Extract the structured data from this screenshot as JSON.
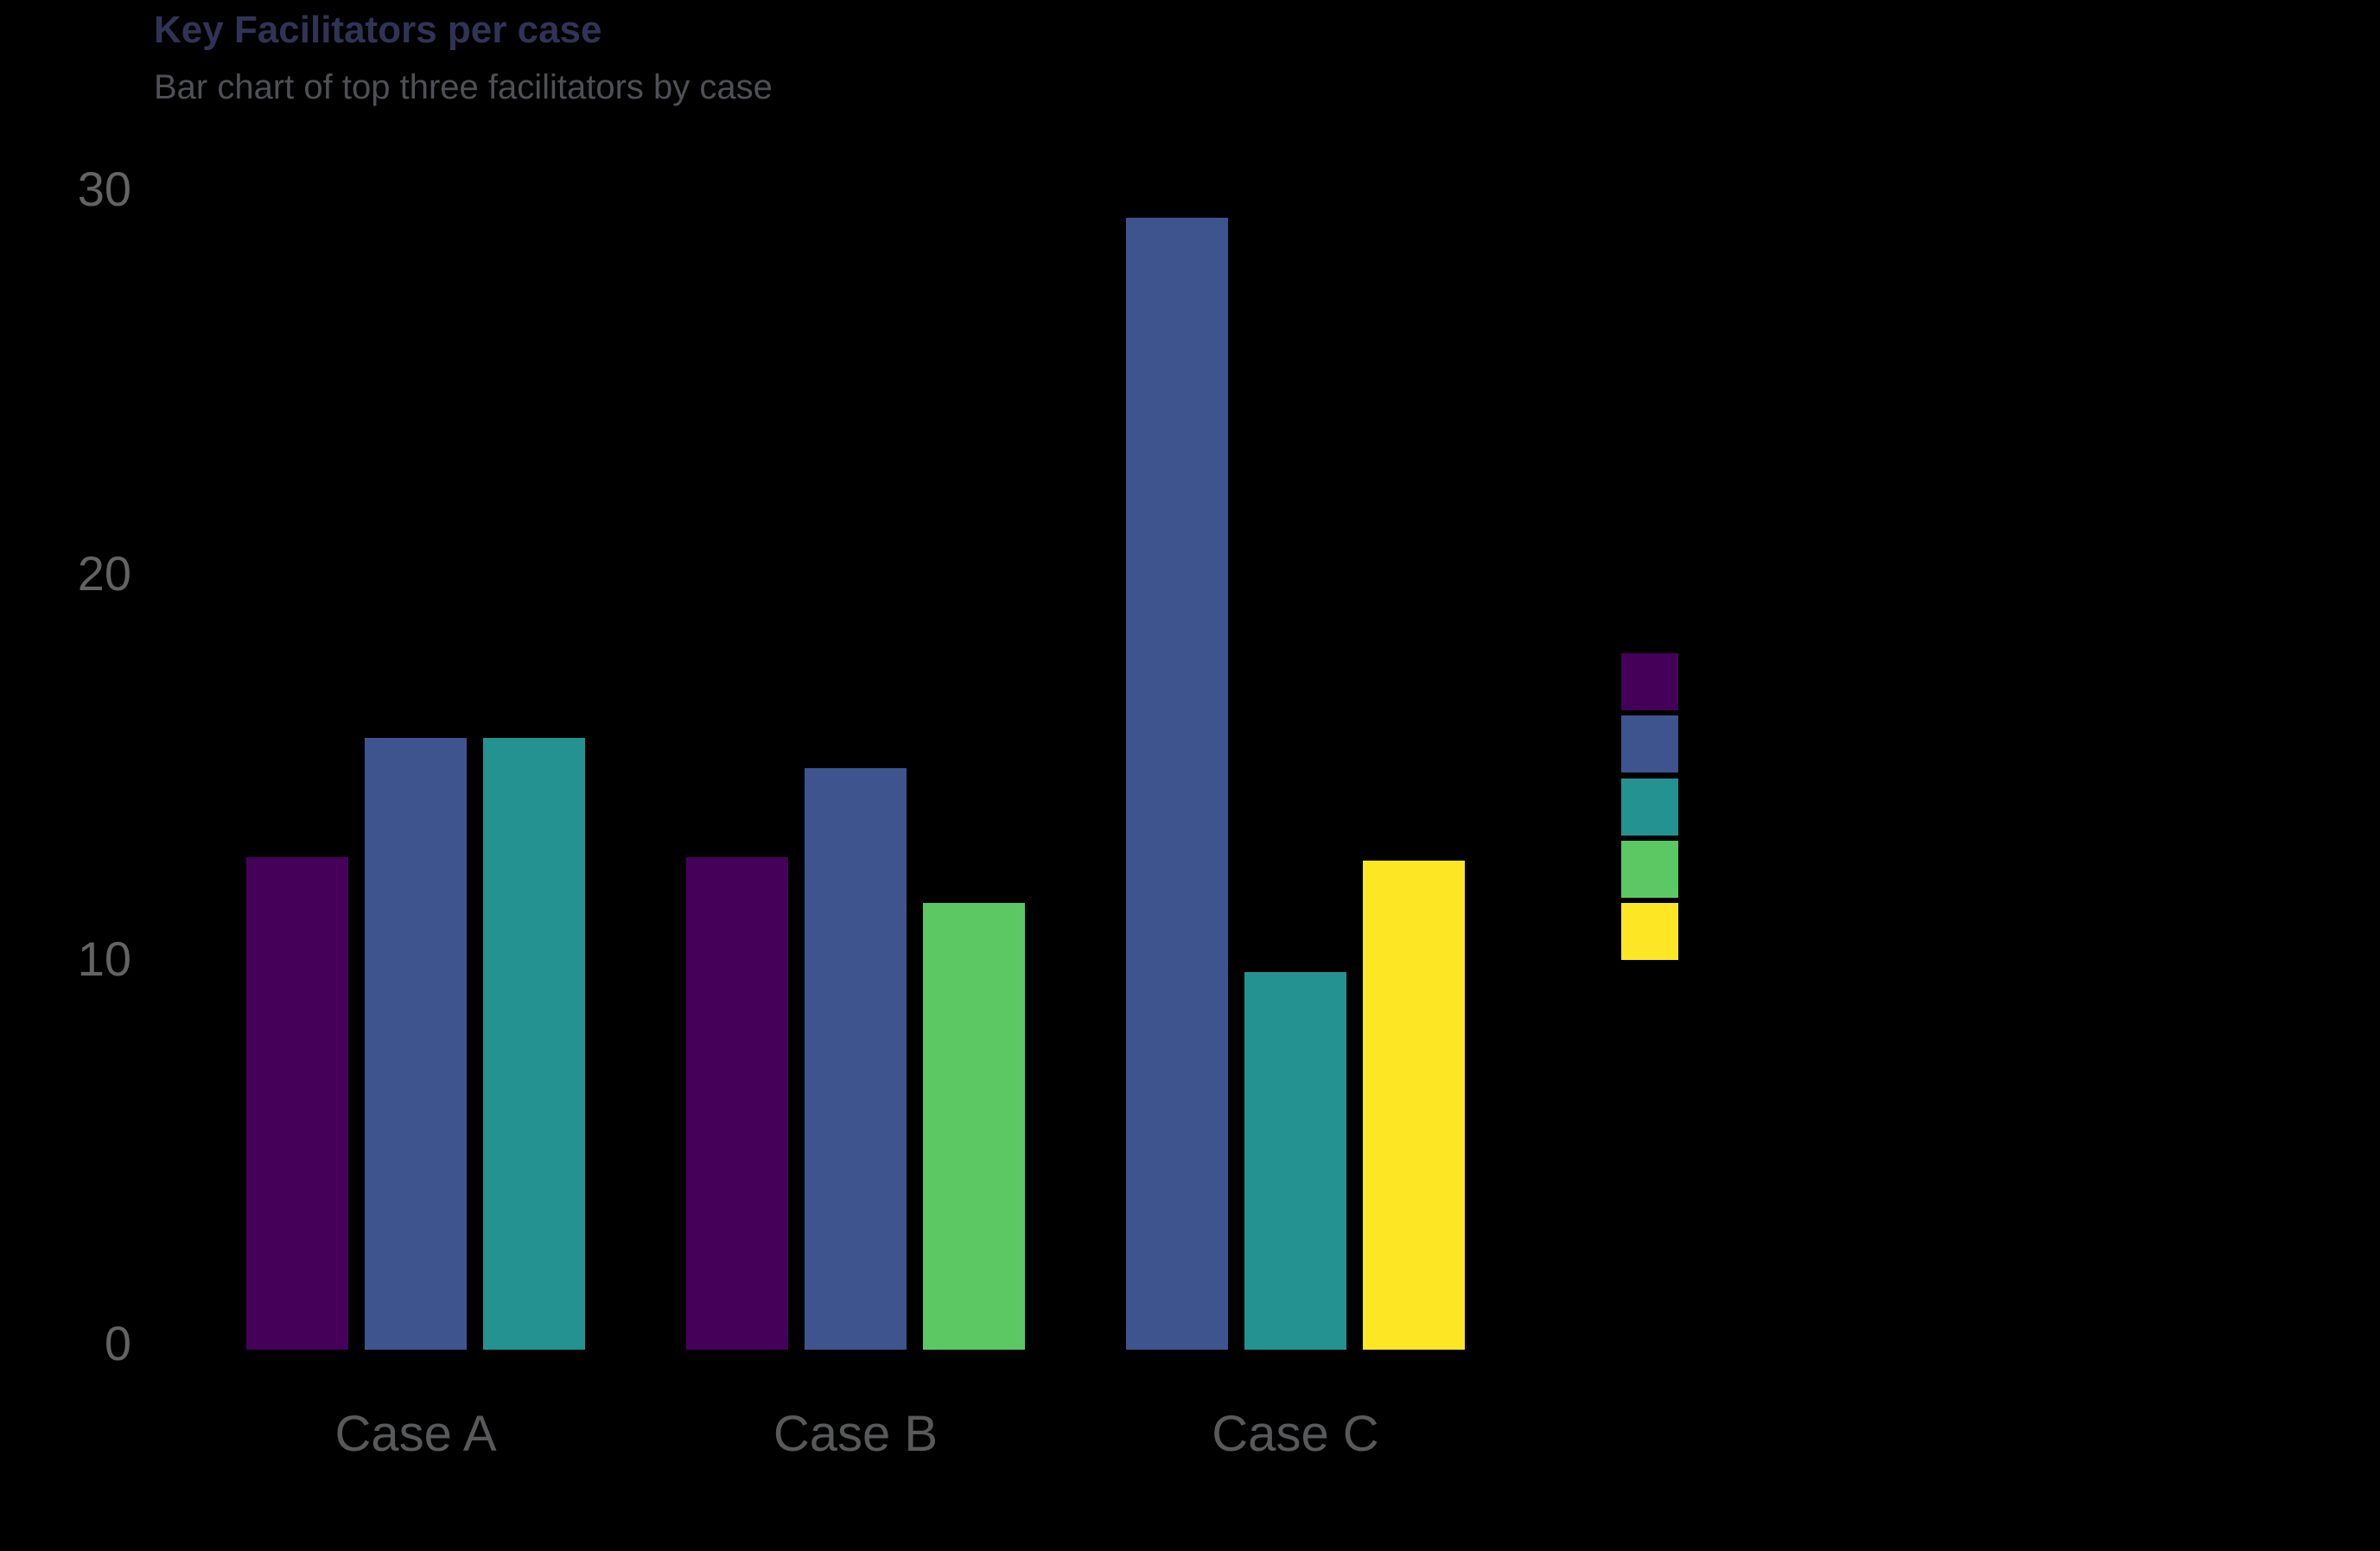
{
  "chart_data": {
    "type": "bar",
    "title": "Key Facilitators per case",
    "subtitle": "Bar chart of top three facilitators by case",
    "categories": [
      "Case A",
      "Case B",
      "Case C"
    ],
    "groups": [
      {
        "category": "Case A",
        "bars": [
          {
            "color": "#45015a",
            "value": 12.8
          },
          {
            "color": "#3d548e",
            "value": 15.9
          },
          {
            "color": "#249290",
            "value": 15.9
          }
        ]
      },
      {
        "category": "Case B",
        "bars": [
          {
            "color": "#45015a",
            "value": 12.8
          },
          {
            "color": "#3d548e",
            "value": 15.1
          },
          {
            "color": "#5cc863",
            "value": 11.6
          }
        ]
      },
      {
        "category": "Case C",
        "bars": [
          {
            "color": "#3d548e",
            "value": 29.4
          },
          {
            "color": "#249290",
            "value": 9.8
          },
          {
            "color": "#fde725",
            "value": 12.7
          }
        ]
      }
    ],
    "y_axis": {
      "ticks": [
        0,
        10,
        20,
        30
      ],
      "range": [
        0,
        30
      ]
    },
    "x_axis": {
      "labels": [
        "Case A",
        "Case B",
        "Case C"
      ]
    },
    "legend": {
      "position": "right",
      "labels_visible": false,
      "colors": [
        "#45015a",
        "#3d548e",
        "#249290",
        "#5cc863",
        "#fde725"
      ]
    },
    "grid": false,
    "colors": {
      "background": "#000000",
      "title_text": "#313356",
      "subtitle_text": "#4e5055",
      "y_tick_text": "#636363",
      "x_tick_text": "#58595b"
    }
  }
}
